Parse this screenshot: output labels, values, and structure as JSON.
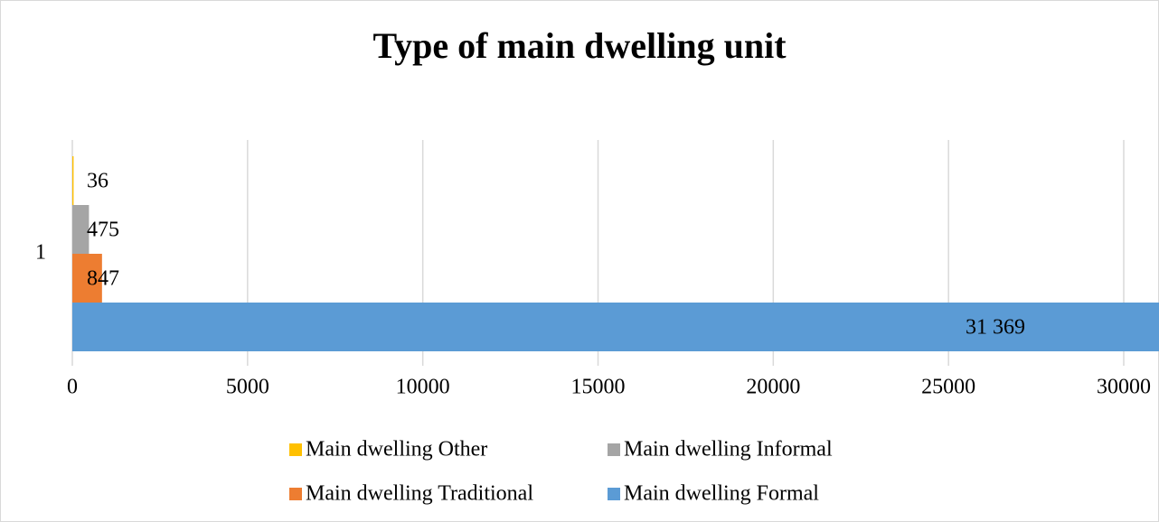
{
  "chart_data": {
    "type": "bar",
    "orientation": "horizontal",
    "title": "Type of main dwelling unit",
    "categories": [
      "1"
    ],
    "series": [
      {
        "name": "Main dwelling Other",
        "color": "#ffc000",
        "values": [
          36
        ],
        "value_labels": [
          "36"
        ]
      },
      {
        "name": "Main dwelling Informal",
        "color": "#a5a5a5",
        "values": [
          475
        ],
        "value_labels": [
          "475"
        ]
      },
      {
        "name": "Main dwelling Traditional",
        "color": "#ed7d31",
        "values": [
          847
        ],
        "value_labels": [
          "847"
        ]
      },
      {
        "name": "Main dwelling Formal",
        "color": "#5b9bd5",
        "values": [
          31369
        ],
        "value_labels": [
          "31 369"
        ]
      }
    ],
    "xlim": [
      0,
      30000
    ],
    "xticks": [
      0,
      5000,
      10000,
      15000,
      20000,
      25000,
      30000
    ],
    "grid": true,
    "legend": "bottom"
  }
}
